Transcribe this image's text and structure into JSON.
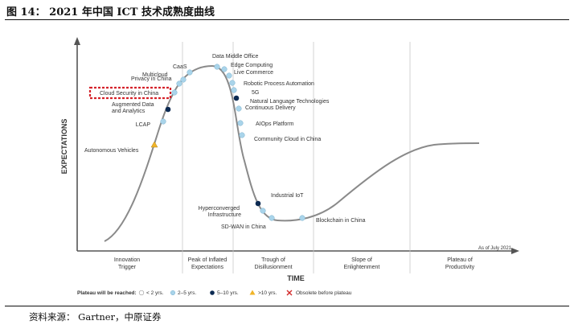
{
  "figure": {
    "title": "图 14： 2021 年中国 ICT 技术成熟度曲线",
    "source": "资料来源： Gartner，中原证券"
  },
  "chart": {
    "y_axis_label": "EXPECTATIONS",
    "x_axis_label": "TIME",
    "as_of": "As of July 2021",
    "phases": [
      {
        "line1": "Innovation",
        "line2": "Trigger"
      },
      {
        "line1": "Peak of Inflated",
        "line2": "Expectations"
      },
      {
        "line1": "Trough of",
        "line2": "Disillusionment"
      },
      {
        "line1": "Slope of",
        "line2": "Enlightenment"
      },
      {
        "line1": "Plateau of",
        "line2": "Productivity"
      }
    ],
    "legend": {
      "title": "Plateau will be reached:",
      "items": [
        {
          "label": "< 2 yrs.",
          "marker": "white-circle",
          "color": "#ffffff"
        },
        {
          "label": "2–5 yrs.",
          "marker": "light-blue-circle",
          "color": "#a9d4ea"
        },
        {
          "label": "5–10 yrs.",
          "marker": "navy-circle",
          "color": "#0c2a52"
        },
        {
          "label": ">10 yrs.",
          "marker": "yellow-triangle",
          "color": "#f0b429"
        },
        {
          "label": "Obsolete before plateau",
          "marker": "red-x",
          "color": "#d22b2b"
        }
      ]
    },
    "technologies": [
      {
        "label": "Autonomous Vehicles",
        "category": ">10 yrs."
      },
      {
        "label": "LCAP",
        "category": "2–5 yrs."
      },
      {
        "label": "Augmented Data\nand Analytics",
        "category": "5–10 yrs."
      },
      {
        "label": "Cloud Security in China",
        "category": "2–5 yrs.",
        "highlighted": true
      },
      {
        "label": "Privacy in China",
        "category": "2–5 yrs."
      },
      {
        "label": "Multicloud",
        "category": "2–5 yrs."
      },
      {
        "label": "CaaS",
        "category": "2–5 yrs."
      },
      {
        "label": "Data Middle Office",
        "category": "2–5 yrs."
      },
      {
        "label": "Edge Computing",
        "category": "2–5 yrs."
      },
      {
        "label": "Live Commerce",
        "category": "2–5 yrs."
      },
      {
        "label": "Robotic Process Automation",
        "category": "2–5 yrs."
      },
      {
        "label": "5G",
        "category": "2–5 yrs."
      },
      {
        "label": "Natural Language Technologies",
        "category": "5–10 yrs."
      },
      {
        "label": "Continuous Delivery",
        "category": "2–5 yrs."
      },
      {
        "label": "AIOps Platform",
        "category": "2–5 yrs."
      },
      {
        "label": "Community Cloud in China",
        "category": "2–5 yrs."
      },
      {
        "label": "Industrial IoT",
        "category": "5–10 yrs."
      },
      {
        "label": "Hyperconverged\nInfrastructure",
        "category": "2–5 yrs."
      },
      {
        "label": "SD-WAN in China",
        "category": "2–5 yrs."
      },
      {
        "label": "Blockchain in China",
        "category": "2–5 yrs."
      }
    ]
  }
}
